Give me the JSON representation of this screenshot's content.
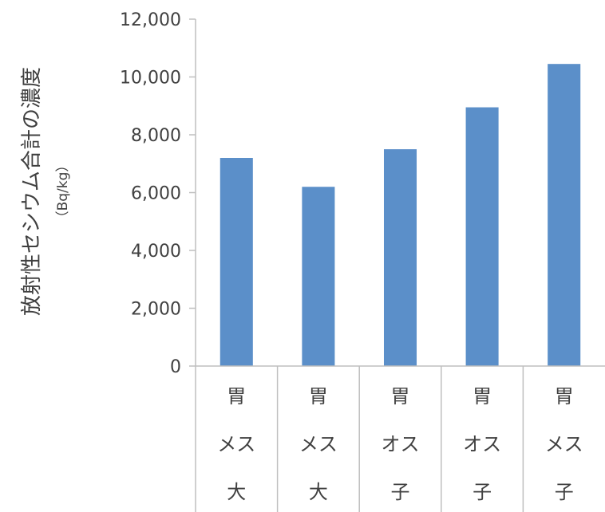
{
  "chart_data": {
    "type": "bar",
    "categories": [
      [
        "胃",
        "メス",
        "大"
      ],
      [
        "胃",
        "メス",
        "大"
      ],
      [
        "胃",
        "オス",
        "子"
      ],
      [
        "胃",
        "オス",
        "子"
      ],
      [
        "胃",
        "メス",
        "子"
      ]
    ],
    "values": [
      7200,
      6200,
      7500,
      8950,
      10450
    ],
    "ylabel": "放射性セシウム合計の濃度",
    "ylabel_unit": "（Bq/kg）",
    "ylim": [
      0,
      12000
    ],
    "yticks": [
      "0",
      "2,000",
      "4,000",
      "6,000",
      "8,000",
      "10,000",
      "12,000"
    ],
    "grid": false,
    "bar_color": "#5b8fc9",
    "axis_color": "#bfbfbf"
  }
}
